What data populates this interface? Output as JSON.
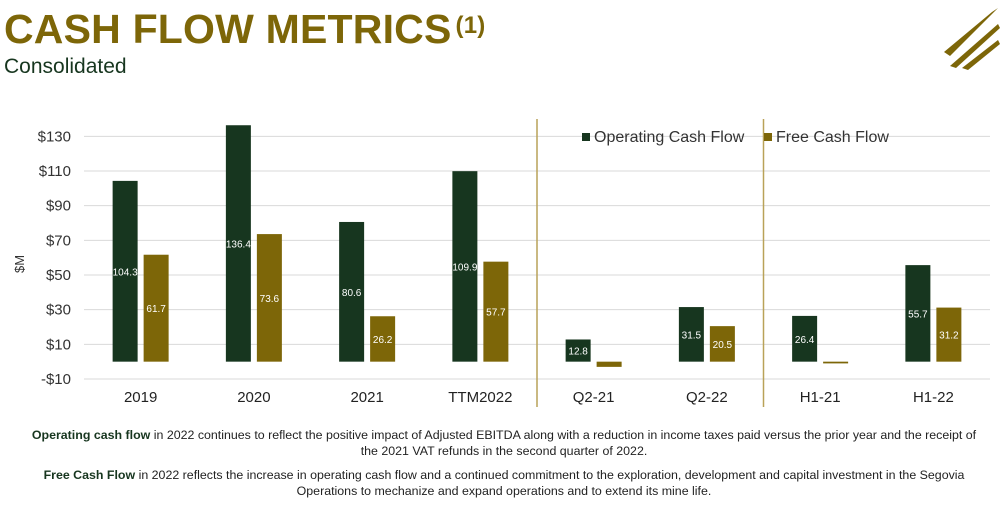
{
  "header": {
    "title": "CASH FLOW METRICS",
    "footnote_marker": "(1)",
    "subtitle": "Consolidated"
  },
  "colors": {
    "operating": "#17361f",
    "free": "#7d6608",
    "title": "#7d6608",
    "divider": "#b9a258"
  },
  "chart_data": {
    "type": "bar",
    "categories": [
      "2019",
      "2020",
      "2021",
      "TTM2022",
      "Q2-21",
      "Q2-22",
      "H1-21",
      "H1-22"
    ],
    "series": [
      {
        "name": "Operating Cash Flow",
        "values": [
          104.3,
          136.4,
          80.6,
          109.9,
          12.8,
          31.5,
          26.4,
          55.7
        ],
        "labels": [
          "104.3",
          "136.4",
          "80.6",
          "109.9",
          "12.8",
          "31.5",
          "26.4",
          "55.7"
        ]
      },
      {
        "name": "Free Cash Flow",
        "values": [
          61.7,
          73.6,
          26.2,
          57.7,
          -3.0,
          20.5,
          -1.0,
          31.2
        ],
        "labels": [
          "61.7",
          "73.6",
          "26.2",
          "57.7",
          "",
          "20.5",
          "",
          "31.2"
        ]
      }
    ],
    "ylabel": "$M",
    "ylim": [
      -10,
      140
    ],
    "yticks": [
      -10,
      10,
      30,
      50,
      70,
      90,
      110,
      130
    ],
    "ytick_labels": [
      "-$10",
      "$10",
      "$30",
      "$50",
      "$70",
      "$90",
      "$110",
      "$130"
    ],
    "grid": true,
    "legend": "top-right",
    "group_dividers_after": [
      "TTM2022",
      "Q2-22"
    ]
  },
  "notes": [
    {
      "lead": "Operating cash flow",
      "line1": " in 2022 continues to reflect the positive impact of Adjusted EBITDA along with a reduction in income taxes paid versus the prior year and the receipt of",
      "line2": "the 2021 VAT refunds in the second quarter of 2022."
    },
    {
      "lead": "Free Cash Flow",
      "line1": " in 2022 reflects the increase in operating cash flow and a continued commitment to the exploration, development and capital investment in the Segovia",
      "line2": "Operations to mechanize and expand operations and to extend its mine life."
    }
  ]
}
